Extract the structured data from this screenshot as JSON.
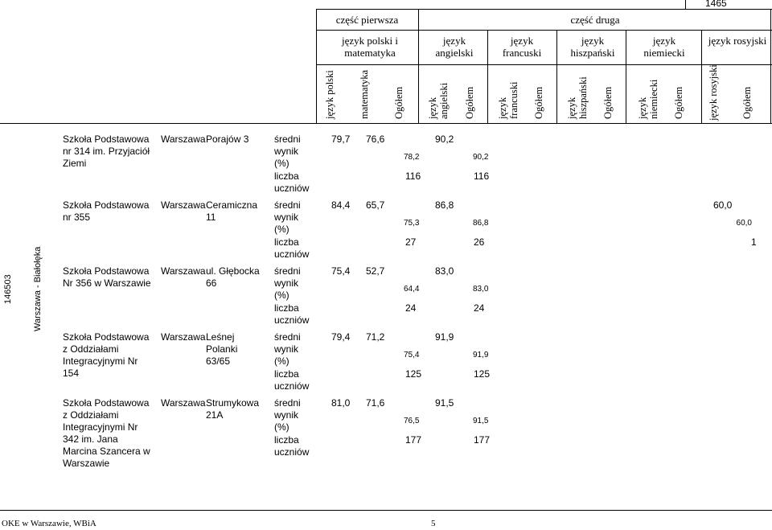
{
  "code_top": "1465",
  "group_headers": {
    "part1": "część pierwsza",
    "part2": "część druga"
  },
  "sub_headers": {
    "polski_mat": "język polski i matematyka",
    "angielski": "język angielski",
    "francuski": "język francuski",
    "hiszpanski": "język hiszpański",
    "niemiecki": "język niemiecki",
    "rosyjski": "język rosyjski"
  },
  "column_headers": [
    "język polski",
    "matematyka",
    "Ogółem",
    "język angielski",
    "Ogółem",
    "język francuski",
    "Ogółem",
    "język hiszpański",
    "Ogółem",
    "język niemiecki",
    "Ogółem",
    "język rosyjski",
    "Ogółem"
  ],
  "left_labels": {
    "id": "146503",
    "district": "Warszawa - Białołęka"
  },
  "row_labels": {
    "avg": "średni wynik (%)",
    "count": "liczba uczniów"
  },
  "schools": [
    {
      "name": "Szkoła Podstawowa nr 314 im. Przyjaciół Ziemi",
      "city": "Warszawa",
      "address": "Porajów 3",
      "polski": "79,7",
      "mat": "76,6",
      "ogolem1": "78,2",
      "ang": "90,2",
      "ang_ogolem": "90,2",
      "ros": "",
      "ros_ogolem": "",
      "ogolem1_count": "116",
      "ang_count": "116",
      "ros_count": ""
    },
    {
      "name": "Szkoła Podstawowa nr 355",
      "city": "Warszawa",
      "address": "Ceramiczna 11",
      "polski": "84,4",
      "mat": "65,7",
      "ogolem1": "75,3",
      "ang": "86,8",
      "ang_ogolem": "86,8",
      "ros": "60,0",
      "ros_ogolem": "60,0",
      "ogolem1_count": "27",
      "ang_count": "26",
      "ros_count": "1"
    },
    {
      "name": "Szkoła Podstawowa Nr 356 w Warszawie",
      "city": "Warszawa",
      "address": "ul. Głębocka 66",
      "polski": "75,4",
      "mat": "52,7",
      "ogolem1": "64,4",
      "ang": "83,0",
      "ang_ogolem": "83,0",
      "ros": "",
      "ros_ogolem": "",
      "ogolem1_count": "24",
      "ang_count": "24",
      "ros_count": ""
    },
    {
      "name": "Szkoła Podstawowa z Oddziałami Integracyjnymi Nr 154",
      "city": "Warszawa",
      "address": "Leśnej Polanki 63/65",
      "polski": "79,4",
      "mat": "71,2",
      "ogolem1": "75,4",
      "ang": "91,9",
      "ang_ogolem": "91,9",
      "ros": "",
      "ros_ogolem": "",
      "ogolem1_count": "125",
      "ang_count": "125",
      "ros_count": ""
    },
    {
      "name": "Szkoła Podstawowa z Oddziałami Integracyjnymi Nr 342 im. Jana Marcina Szancera w Warszawie",
      "city": "Warszawa",
      "address": "Strumykowa 21A",
      "polski": "81,0",
      "mat": "71,6",
      "ogolem1": "76,5",
      "ang": "91,5",
      "ang_ogolem": "91,5",
      "ros": "",
      "ros_ogolem": "",
      "ogolem1_count": "177",
      "ang_count": "177",
      "ros_count": ""
    }
  ],
  "footer": {
    "left": "OKE w Warszawie, WBiA",
    "page": "5"
  }
}
